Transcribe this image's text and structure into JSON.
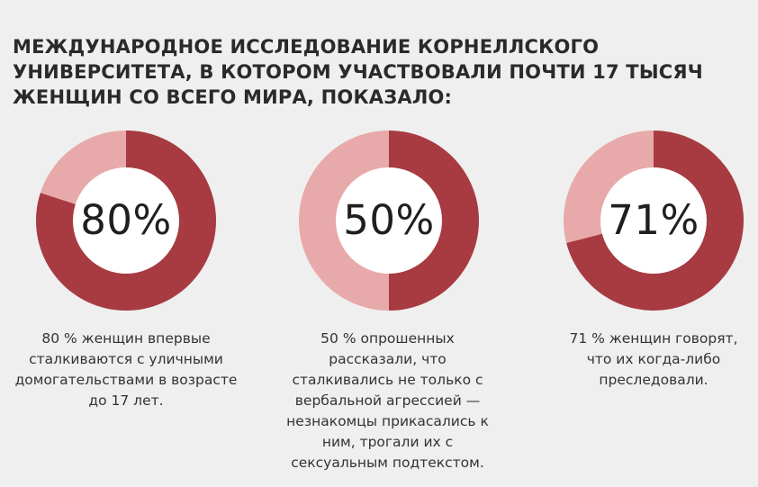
{
  "headline": "МЕЖДУНАРОДНОЕ ИССЛЕДОВАНИЕ КОРНЕЛЛСКОГО УНИВЕРСИТЕТА, В КОТОРОМ УЧАСТВОВАЛИ ПОЧТИ 17 ТЫСЯЧ ЖЕНЩИН СО ВСЕГО МИРА, ПОКАЗАЛО:",
  "colors": {
    "primary": "#a73b41",
    "secondary": "#e8a9aa",
    "center": "#ffffff"
  },
  "chart_data": [
    {
      "type": "pie",
      "label": "80%",
      "values": [
        80,
        20
      ],
      "caption": "80 % женщин впервые сталкиваются с уличными домогательствами в возрасте до 17 лет."
    },
    {
      "type": "pie",
      "label": "50%",
      "values": [
        50,
        50
      ],
      "caption": "50 % опрошенных рассказали, что сталкивались не только с вербальной агрессией — незнакомцы прикасались к ним, трогали их с сексуальным подтекстом."
    },
    {
      "type": "pie",
      "label": "71%",
      "values": [
        71,
        29
      ],
      "caption": "71 % женщин говорят, что их когда-либо преследовали."
    }
  ]
}
